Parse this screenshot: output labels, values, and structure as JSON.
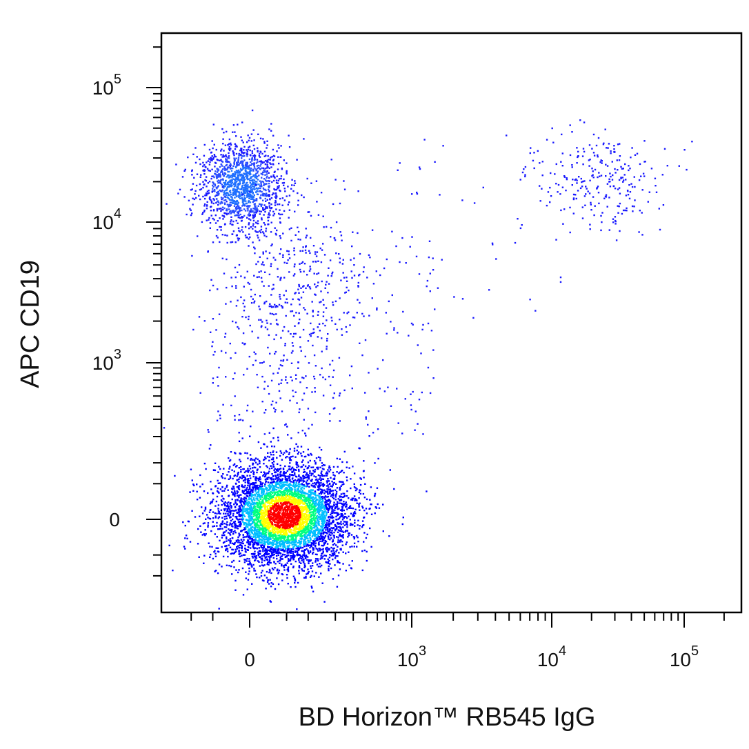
{
  "chart_data": {
    "type": "scatter",
    "title": "",
    "xlabel": "BD Horizon™ RB545 IgG",
    "ylabel": "APC CD19",
    "x_scale": "biexponential",
    "y_scale": "biexponential",
    "xlim": [
      -200,
      150000
    ],
    "ylim": [
      -300,
      250000
    ],
    "grid": false,
    "legend": "none",
    "density_colormap": [
      "#0000ff",
      "#00bfff",
      "#00ff80",
      "#ffff00",
      "#ff0000"
    ],
    "point_color": "#1a1aff",
    "x_ticks": [
      {
        "value": 0,
        "base": "0",
        "exp": ""
      },
      {
        "value": 1000,
        "base": "10",
        "exp": "3"
      },
      {
        "value": 10000,
        "base": "10",
        "exp": "4"
      },
      {
        "value": 100000,
        "base": "10",
        "exp": "5"
      }
    ],
    "y_ticks": [
      {
        "value": 0,
        "base": "0",
        "exp": ""
      },
      {
        "value": 1000,
        "base": "10",
        "exp": "3"
      },
      {
        "value": 10000,
        "base": "10",
        "exp": "4"
      },
      {
        "value": 100000,
        "base": "10",
        "exp": "5"
      }
    ],
    "populations": [
      {
        "name": "",
        "center_x": 45,
        "center_y": 5,
        "points": 5200,
        "density": "high"
      },
      {
        "name": "",
        "center_x": -10,
        "center_y": 19000,
        "points": 1400,
        "density": "medium"
      },
      {
        "name": "",
        "center_x": 22000,
        "center_y": 22000,
        "points": 260,
        "density": "low"
      },
      {
        "name": "",
        "center_x": 60,
        "center_y": 3000,
        "points": 450,
        "density": "low"
      }
    ]
  }
}
